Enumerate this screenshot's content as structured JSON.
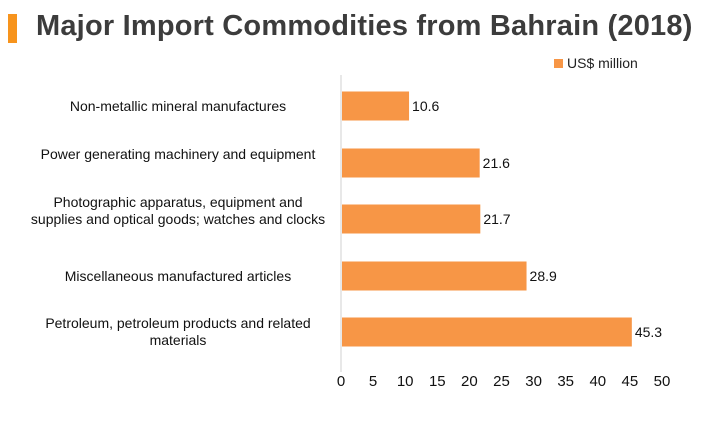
{
  "title": "Major Import Commodities from Bahrain (2018)",
  "colors": {
    "accent": "#f7941d",
    "bar": "#f79646"
  },
  "chart_data": {
    "type": "bar",
    "orientation": "horizontal",
    "title": "Major Import Commodities from Bahrain (2018)",
    "xlabel": "",
    "ylabel": "",
    "xlim": [
      0,
      50
    ],
    "xticks": [
      0,
      5,
      10,
      15,
      20,
      25,
      30,
      35,
      40,
      45,
      50
    ],
    "grid": false,
    "legend_position": "top-right",
    "categories": [
      "Non-metallic mineral manufactures",
      "Power generating machinery and equipment",
      "Photographic apparatus, equipment and supplies and optical goods; watches and clocks",
      "Miscellaneous manufactured articles",
      "Petroleum, petroleum products and related materials"
    ],
    "series": [
      {
        "name": "US$ million",
        "values": [
          10.6,
          21.6,
          21.7,
          28.9,
          45.3
        ],
        "labels": [
          "10.6",
          "21.6",
          "21.7",
          "28.9",
          "45.3"
        ]
      }
    ]
  }
}
